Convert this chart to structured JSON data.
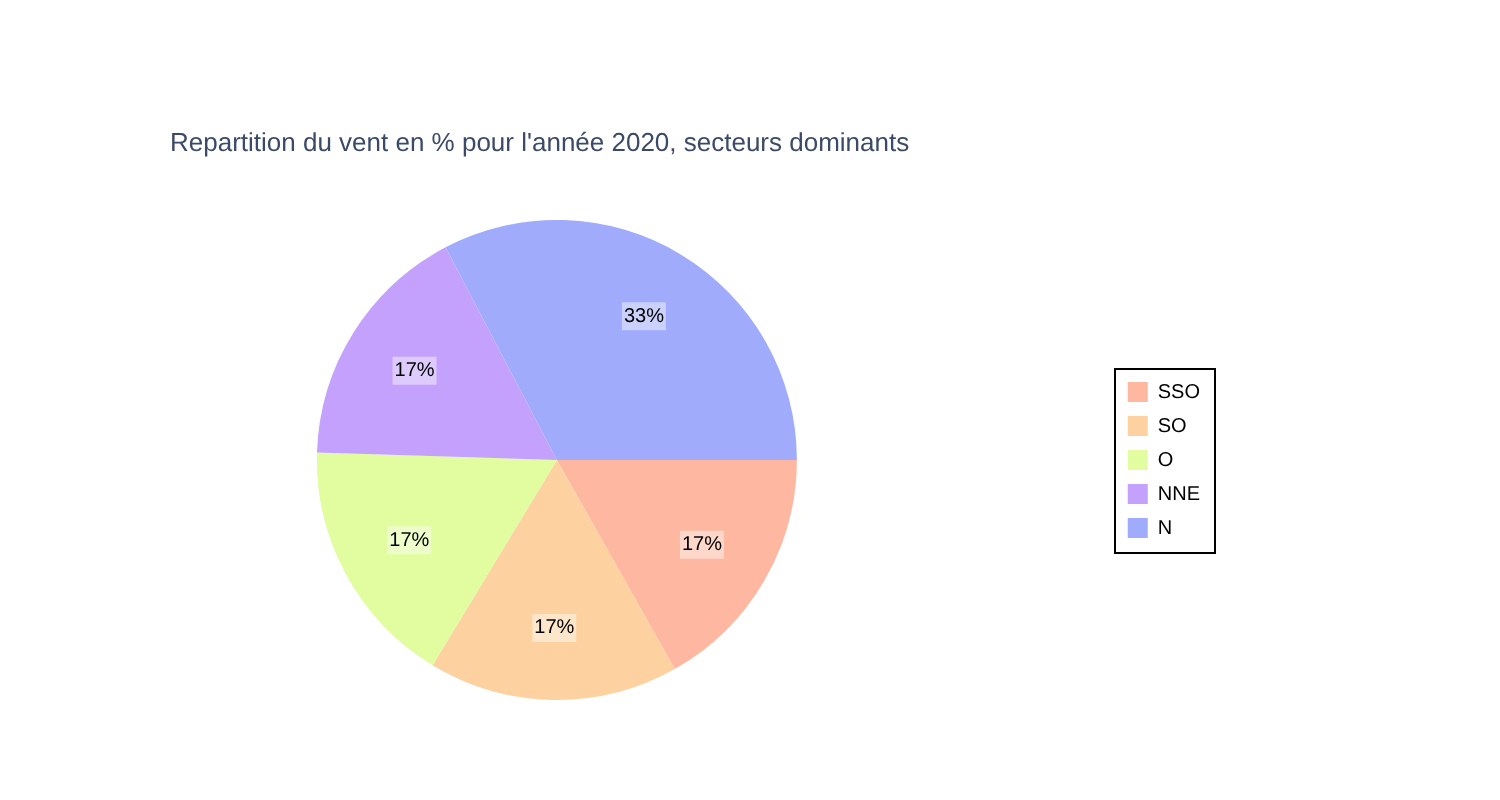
{
  "chart_data": {
    "type": "pie",
    "title": "Repartition du vent en % pour l'année 2020, secteurs dominants",
    "categories": [
      "SSO",
      "SO",
      "O",
      "NNE",
      "N"
    ],
    "values": [
      17,
      17,
      17,
      17,
      33
    ],
    "colors": [
      "#feb7a0",
      "#fdd1a0",
      "#e1fda0",
      "#c4a1fc",
      "#a0abfc"
    ],
    "value_labels": [
      "17%",
      "17%",
      "17%",
      "17%",
      "33%"
    ],
    "legend": "right"
  }
}
